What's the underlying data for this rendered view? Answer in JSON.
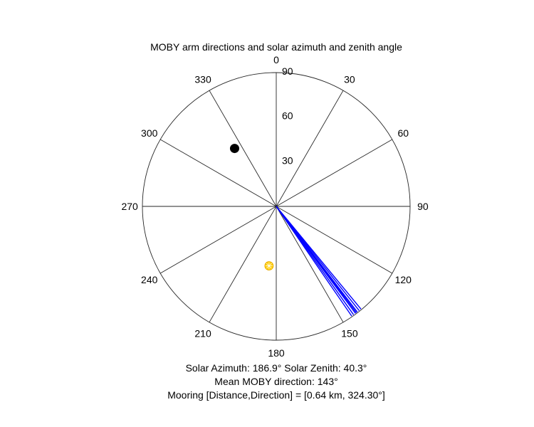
{
  "chart_data": {
    "type": "polar",
    "title": "MOBY arm directions and solar azimuth and zenith angle",
    "angular_axis": {
      "zero_location": "top",
      "direction": "clockwise",
      "tick_values": [
        0,
        30,
        60,
        90,
        120,
        150,
        180,
        210,
        240,
        270,
        300,
        330
      ],
      "tick_labels": [
        "0",
        "30",
        "60",
        "90",
        "120",
        "150",
        "180",
        "210",
        "240",
        "270",
        "300",
        "330"
      ]
    },
    "radial_axis": {
      "range": [
        0,
        90
      ],
      "tick_values": [
        30,
        60,
        90
      ],
      "tick_labels": [
        "30",
        "60",
        "90"
      ]
    },
    "grid": true,
    "series": [
      {
        "kind": "lines",
        "color": "#0000ff",
        "directions": [
          140.5,
          141.5,
          142.5,
          143.0,
          143.5,
          144.5,
          145.5
        ],
        "radius": 90
      },
      {
        "kind": "point",
        "color": "#ffcc00",
        "azimuth": 186.9,
        "zenith": 40.3
      },
      {
        "kind": "point",
        "color": "#000000",
        "azimuth": 324.3,
        "zenith": 48
      }
    ],
    "caption_lines": [
      "Solar Azimuth: 186.9°    Solar Zenith: 40.3°",
      "Mean MOBY direction: 143°",
      "Mooring [Distance,Direction] = [0.64 km, 324.30°]"
    ]
  },
  "colors": {
    "grid": "#262626",
    "axes_bg": "#ffffff"
  }
}
